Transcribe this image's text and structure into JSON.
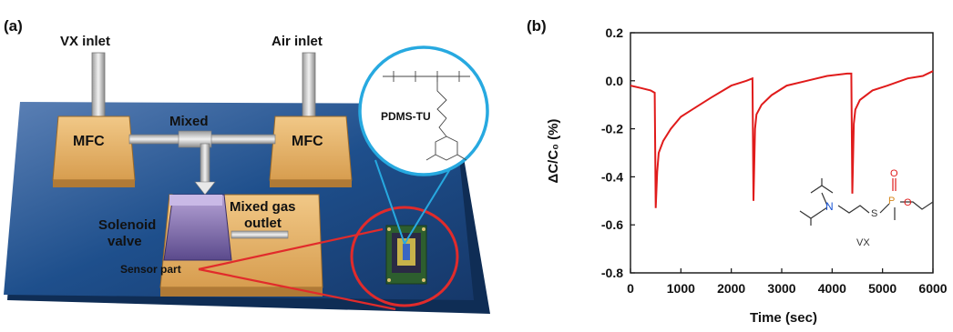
{
  "panel_a": {
    "label": "(a)",
    "vx_inlet": "VX inlet",
    "air_inlet": "Air inlet",
    "mfc_left": "MFC",
    "mfc_right": "MFC",
    "mixed": "Mixed",
    "mixed_gas_outlet_1": "Mixed gas",
    "mixed_gas_outlet_2": "outlet",
    "solenoid_1": "Solenoid",
    "solenoid_2": "valve",
    "sensor_part": "Sensor part",
    "polymer_name": "PDMS-TU",
    "colors": {
      "platform": "#1b4d86",
      "box": "#e8b56a",
      "zoom_circle": "#27a9e0",
      "sensor_circle": "#e12b2b"
    }
  },
  "panel_b": {
    "label": "(b)",
    "molecule_label": "VX",
    "chart_data": {
      "type": "line",
      "xlabel": "Time (sec)",
      "ylabel": "ΔC/C₀ (%)",
      "xlim": [
        0,
        6000
      ],
      "ylim": [
        -0.8,
        0.2
      ],
      "xticks": [
        "0",
        "1000",
        "2000",
        "3000",
        "4000",
        "5000",
        "6000"
      ],
      "yticks": [
        "0.2",
        "0.0",
        "-0.2",
        "-0.4",
        "-0.6",
        "-0.8"
      ],
      "grid": false,
      "color": "#e01b1b",
      "series": [
        {
          "x": [
            0,
            200,
            400,
            480,
            500,
            530,
            560,
            650,
            800,
            1000,
            1300,
            1600,
            2000,
            2300,
            2420,
            2440,
            2470,
            2500,
            2600,
            2800,
            3100,
            3500,
            3900,
            4300,
            4380,
            4400,
            4430,
            4460,
            4550,
            4800,
            5100,
            5500,
            5800,
            6000
          ],
          "y": [
            -0.02,
            -0.03,
            -0.04,
            -0.05,
            -0.53,
            -0.38,
            -0.3,
            -0.25,
            -0.2,
            -0.15,
            -0.11,
            -0.07,
            -0.02,
            0.0,
            0.01,
            -0.5,
            -0.2,
            -0.14,
            -0.1,
            -0.06,
            -0.02,
            0.0,
            0.02,
            0.03,
            0.03,
            -0.47,
            -0.18,
            -0.12,
            -0.08,
            -0.04,
            -0.02,
            0.01,
            0.02,
            0.04
          ]
        }
      ]
    }
  }
}
